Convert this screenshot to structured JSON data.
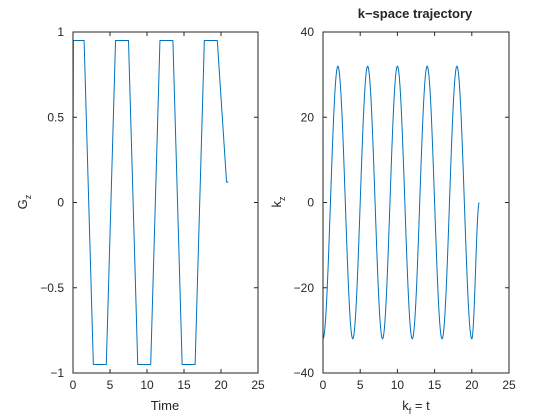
{
  "colors": {
    "series": "#0072bd",
    "axes": "#262626",
    "background": "#ffffff"
  },
  "chart_data": [
    {
      "type": "line",
      "title": "",
      "xlabel": "Time",
      "ylabel_main": "G",
      "ylabel_sub": "z",
      "xlim": [
        0,
        25
      ],
      "ylim": [
        -1,
        1
      ],
      "xticks": [
        0,
        5,
        10,
        15,
        20,
        25
      ],
      "yticks": [
        -1,
        -0.5,
        0,
        0.5,
        1
      ],
      "ytick_labels": [
        "−1",
        "−0.5",
        "0",
        "0.5",
        "1"
      ],
      "grid": false,
      "series": [
        {
          "x": [
            0,
            0.05,
            0.25,
            1.25,
            1.5,
            2.75,
            3.0,
            4.25,
            4.5,
            5.75,
            6.0,
            7.25,
            7.5,
            8.75,
            9.0,
            10.25,
            10.5,
            11.75,
            12.0,
            13.25,
            13.5,
            14.75,
            15.0,
            16.25,
            16.5,
            17.75,
            18.0,
            19.25,
            19.5,
            20.75,
            21.0
          ],
          "y": [
            0.2,
            0.95,
            0.95,
            0.95,
            0.95,
            -0.95,
            -0.95,
            -0.95,
            -0.95,
            0.95,
            0.95,
            0.95,
            0.95,
            -0.95,
            -0.95,
            -0.95,
            -0.95,
            0.95,
            0.95,
            0.95,
            0.95,
            -0.95,
            -0.95,
            -0.95,
            -0.95,
            0.95,
            0.95,
            0.95,
            0.95,
            0.12,
            0.12
          ]
        }
      ]
    },
    {
      "type": "line",
      "title": "k−space trajectory",
      "xlabel_main": "k",
      "xlabel_sub": "f",
      "xlabel_rest": " = t",
      "ylabel_main": "k",
      "ylabel_sub": "z",
      "xlim": [
        0,
        25
      ],
      "ylim": [
        -40,
        40
      ],
      "xticks": [
        0,
        5,
        10,
        15,
        20,
        25
      ],
      "yticks": [
        -40,
        -20,
        0,
        20,
        40
      ],
      "ytick_labels": [
        "−40",
        "−20",
        "0",
        "20",
        "40"
      ],
      "grid": false,
      "series": [
        {
          "x": [
            0,
            2,
            4,
            6,
            8,
            10,
            12,
            14,
            16,
            18,
            20,
            21
          ],
          "y": [
            -32,
            32,
            -32,
            32,
            -32,
            32,
            -32,
            32,
            -32,
            32,
            -32,
            0
          ]
        }
      ]
    }
  ]
}
